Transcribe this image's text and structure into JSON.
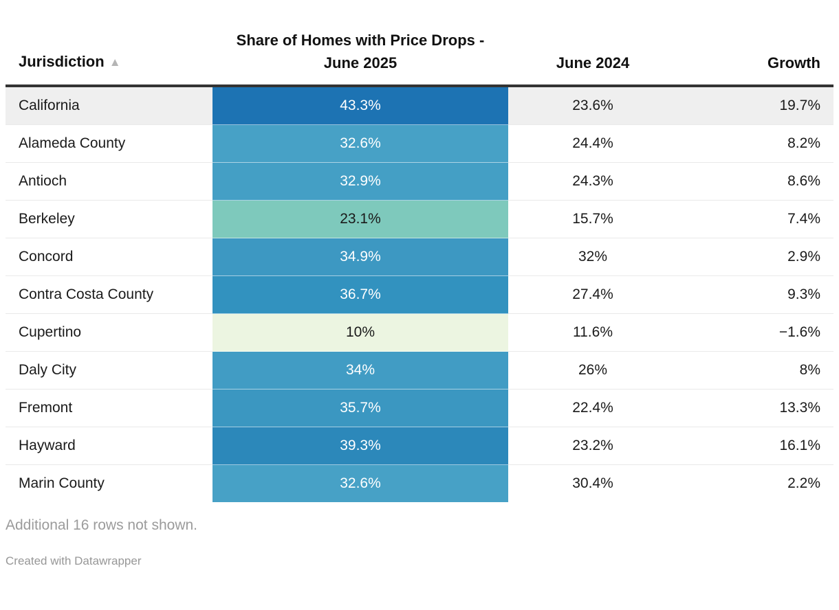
{
  "table": {
    "columns": {
      "jurisdiction": {
        "label": "Jurisdiction",
        "sort_icon": "▲"
      },
      "heat": {
        "label": "Share of Homes with Price Drops - June 2025"
      },
      "june2024": {
        "label": "June 2024"
      },
      "growth": {
        "label": "Growth"
      }
    },
    "rows": [
      {
        "jurisdiction": "California",
        "heat_value": "43.3%",
        "heat_color": "#1d73b3",
        "heat_text_color": "#ffffff",
        "june2024": "23.6%",
        "growth": "19.7%",
        "highlight": true
      },
      {
        "jurisdiction": "Alameda County",
        "heat_value": "32.6%",
        "heat_color": "#47a1c6",
        "heat_text_color": "#ffffff",
        "june2024": "24.4%",
        "growth": "8.2%",
        "highlight": false
      },
      {
        "jurisdiction": "Antioch",
        "heat_value": "32.9%",
        "heat_color": "#449fc5",
        "heat_text_color": "#ffffff",
        "june2024": "24.3%",
        "growth": "8.6%",
        "highlight": false
      },
      {
        "jurisdiction": "Berkeley",
        "heat_value": "23.1%",
        "heat_color": "#7ec9bc",
        "heat_text_color": "#1a1a1a",
        "june2024": "15.7%",
        "growth": "7.4%",
        "highlight": false
      },
      {
        "jurisdiction": "Concord",
        "heat_value": "34.9%",
        "heat_color": "#3d98c2",
        "heat_text_color": "#ffffff",
        "june2024": "32%",
        "growth": "2.9%",
        "highlight": false
      },
      {
        "jurisdiction": "Contra Costa County",
        "heat_value": "36.7%",
        "heat_color": "#3292bf",
        "heat_text_color": "#ffffff",
        "june2024": "27.4%",
        "growth": "9.3%",
        "highlight": false
      },
      {
        "jurisdiction": "Cupertino",
        "heat_value": "10%",
        "heat_color": "#ecf5e1",
        "heat_text_color": "#1a1a1a",
        "june2024": "11.6%",
        "growth": "−1.6%",
        "highlight": false
      },
      {
        "jurisdiction": "Daly City",
        "heat_value": "34%",
        "heat_color": "#419cc4",
        "heat_text_color": "#ffffff",
        "june2024": "26%",
        "growth": "8%",
        "highlight": false
      },
      {
        "jurisdiction": "Fremont",
        "heat_value": "35.7%",
        "heat_color": "#3b97c1",
        "heat_text_color": "#ffffff",
        "june2024": "22.4%",
        "growth": "13.3%",
        "highlight": false
      },
      {
        "jurisdiction": "Hayward",
        "heat_value": "39.3%",
        "heat_color": "#2c88ba",
        "heat_text_color": "#ffffff",
        "june2024": "23.2%",
        "growth": "16.1%",
        "highlight": false
      },
      {
        "jurisdiction": "Marin County",
        "heat_value": "32.6%",
        "heat_color": "#47a1c6",
        "heat_text_color": "#ffffff",
        "june2024": "30.4%",
        "growth": "2.2%",
        "highlight": false
      }
    ]
  },
  "footer": {
    "note": "Additional 16 rows not shown.",
    "attribution": "Created with Datawrapper"
  },
  "colors": {
    "header_border": "#333333",
    "highlight_row_bg": "#efefef",
    "row_divider": "#e9e9e9",
    "note_text": "#9b9b9b",
    "sort_arrow": "#b5b5b5"
  },
  "chart_data": {
    "type": "table",
    "title": "Share of Homes with Price Drops - June 2025",
    "columns": [
      "Jurisdiction",
      "Share of Homes with Price Drops - June 2025",
      "June 2024",
      "Growth"
    ],
    "rows": [
      [
        "California",
        43.3,
        23.6,
        19.7
      ],
      [
        "Alameda County",
        32.6,
        24.4,
        8.2
      ],
      [
        "Antioch",
        32.9,
        24.3,
        8.6
      ],
      [
        "Berkeley",
        23.1,
        15.7,
        7.4
      ],
      [
        "Concord",
        34.9,
        32,
        2.9
      ],
      [
        "Contra Costa County",
        36.7,
        27.4,
        9.3
      ],
      [
        "Cupertino",
        10,
        11.6,
        -1.6
      ],
      [
        "Daly City",
        34,
        26,
        8
      ],
      [
        "Fremont",
        35.7,
        22.4,
        13.3
      ],
      [
        "Hayward",
        39.3,
        23.2,
        16.1
      ],
      [
        "Marin County",
        32.6,
        30.4,
        2.2
      ]
    ],
    "heatmap_column": "Share of Homes with Price Drops - June 2025",
    "heatmap_scale": "green-to-blue sequential, low=#ecf5e1 high=#1d73b3",
    "note": "Additional 16 rows not shown.",
    "attribution": "Created with Datawrapper",
    "sorted_by": "Jurisdiction ascending"
  }
}
